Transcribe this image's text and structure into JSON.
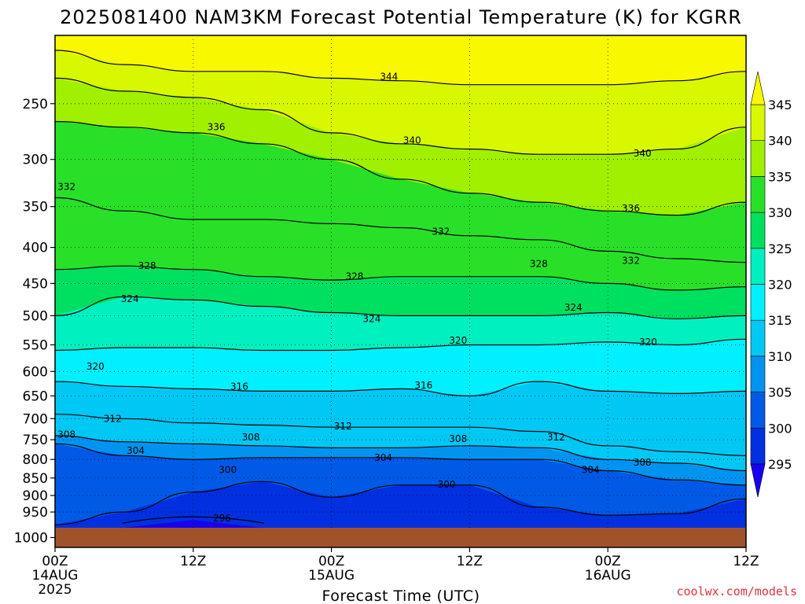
{
  "chart_data": {
    "type": "heatmap",
    "title": "2025081400 NAM3KM Forecast Potential Temperature (K) for KGRR",
    "xlabel": "Forecast Time (UTC)",
    "ylabel": "",
    "credit": "coolwx.com/models",
    "x_unit": "forecast hours from 2025-08-14 00Z",
    "xlim": [
      0,
      60
    ],
    "ylim_hPa": [
      1000,
      200
    ],
    "y_scale": "log-pressure (inverted)",
    "grid": true,
    "x_ticks": [
      {
        "hour": 0,
        "line1": "00Z",
        "line2": "14AUG",
        "line3": "2025"
      },
      {
        "hour": 12,
        "line1": "12Z",
        "line2": "",
        "line3": ""
      },
      {
        "hour": 24,
        "line1": "00Z",
        "line2": "15AUG",
        "line3": ""
      },
      {
        "hour": 36,
        "line1": "12Z",
        "line2": "",
        "line3": ""
      },
      {
        "hour": 48,
        "line1": "00Z",
        "line2": "16AUG",
        "line3": ""
      },
      {
        "hour": 60,
        "line1": "12Z",
        "line2": "",
        "line3": ""
      }
    ],
    "y_ticks": [
      250,
      300,
      350,
      400,
      450,
      500,
      550,
      600,
      650,
      700,
      750,
      800,
      850,
      900,
      950,
      1000
    ],
    "colorbar": {
      "levels": [
        295,
        300,
        305,
        310,
        315,
        320,
        325,
        330,
        335,
        340,
        345
      ],
      "colors": [
        "#1800f0",
        "#0030e0",
        "#005ae6",
        "#0094f0",
        "#00c8f5",
        "#00f0ff",
        "#00f0c0",
        "#00e060",
        "#28e028",
        "#a0f000",
        "#d8f800",
        "#f8f800"
      ],
      "extend": "both"
    },
    "ground_color": "#a0522d",
    "times": [
      0,
      6,
      12,
      18,
      24,
      30,
      36,
      42,
      48,
      54,
      60
    ],
    "isentropes": [
      {
        "theta": 296,
        "p": [
          null,
          null,
          975,
          null,
          null,
          null,
          null,
          null,
          null,
          null,
          null
        ]
      },
      {
        "theta": 300,
        "p": [
          990,
          950,
          890,
          860,
          905,
          870,
          870,
          935,
          960,
          955,
          910
        ]
      },
      {
        "theta": 304,
        "p": [
          760,
          790,
          800,
          795,
          795,
          795,
          800,
          800,
          830,
          855,
          870
        ]
      },
      {
        "theta": 308,
        "p": [
          740,
          755,
          760,
          765,
          770,
          770,
          765,
          770,
          800,
          810,
          830
        ]
      },
      {
        "theta": 312,
        "p": [
          690,
          700,
          710,
          715,
          720,
          720,
          720,
          730,
          765,
          780,
          790
        ]
      },
      {
        "theta": 316,
        "p": [
          620,
          630,
          635,
          640,
          640,
          635,
          650,
          620,
          640,
          645,
          640
        ]
      },
      {
        "theta": 320,
        "p": [
          560,
          555,
          555,
          560,
          560,
          555,
          550,
          550,
          545,
          550,
          540
        ]
      },
      {
        "theta": 324,
        "p": [
          500,
          470,
          475,
          485,
          495,
          500,
          500,
          500,
          495,
          505,
          500
        ]
      },
      {
        "theta": 328,
        "p": [
          430,
          425,
          430,
          440,
          445,
          440,
          440,
          440,
          450,
          460,
          455
        ]
      },
      {
        "theta": 332,
        "p": [
          340,
          355,
          365,
          365,
          370,
          375,
          385,
          390,
          405,
          415,
          420
        ]
      },
      {
        "theta": 336,
        "p": [
          265,
          270,
          275,
          285,
          300,
          320,
          335,
          345,
          355,
          360,
          345
        ]
      },
      {
        "theta": 340,
        "p": [
          230,
          240,
          245,
          255,
          275,
          285,
          290,
          295,
          295,
          290,
          270
        ]
      },
      {
        "theta": 344,
        "p": [
          210,
          220,
          225,
          225,
          230,
          232,
          235,
          235,
          235,
          232,
          225
        ]
      }
    ],
    "contour_labels": [
      {
        "theta": 344,
        "hour": 29.0,
        "p": 229
      },
      {
        "theta": 336,
        "hour": 14.0,
        "p": 270
      },
      {
        "theta": 340,
        "hour": 31.0,
        "p": 282
      },
      {
        "theta": 340,
        "hour": 51.0,
        "p": 294
      },
      {
        "theta": 332,
        "hour": 1.0,
        "p": 328
      },
      {
        "theta": 336,
        "hour": 50.0,
        "p": 352
      },
      {
        "theta": 332,
        "hour": 33.5,
        "p": 380
      },
      {
        "theta": 332,
        "hour": 50.0,
        "p": 418
      },
      {
        "theta": 328,
        "hour": 8.0,
        "p": 425
      },
      {
        "theta": 328,
        "hour": 42.0,
        "p": 422
      },
      {
        "theta": 328,
        "hour": 26.0,
        "p": 440
      },
      {
        "theta": 324,
        "hour": 6.5,
        "p": 473
      },
      {
        "theta": 324,
        "hour": 45.0,
        "p": 487
      },
      {
        "theta": 324,
        "hour": 27.5,
        "p": 505
      },
      {
        "theta": 320,
        "hour": 35.0,
        "p": 542
      },
      {
        "theta": 320,
        "hour": 51.5,
        "p": 545
      },
      {
        "theta": 320,
        "hour": 3.5,
        "p": 590
      },
      {
        "theta": 316,
        "hour": 16.0,
        "p": 630
      },
      {
        "theta": 316,
        "hour": 32.0,
        "p": 628
      },
      {
        "theta": 312,
        "hour": 5.0,
        "p": 700
      },
      {
        "theta": 312,
        "hour": 25.0,
        "p": 718
      },
      {
        "theta": 312,
        "hour": 43.5,
        "p": 744
      },
      {
        "theta": 308,
        "hour": 1.0,
        "p": 737
      },
      {
        "theta": 308,
        "hour": 17.0,
        "p": 744
      },
      {
        "theta": 308,
        "hour": 35.0,
        "p": 748
      },
      {
        "theta": 308,
        "hour": 51.0,
        "p": 808
      },
      {
        "theta": 304,
        "hour": 7.0,
        "p": 777
      },
      {
        "theta": 304,
        "hour": 28.5,
        "p": 795
      },
      {
        "theta": 304,
        "hour": 46.5,
        "p": 828
      },
      {
        "theta": 300,
        "hour": 15.0,
        "p": 828
      },
      {
        "theta": 300,
        "hour": 34.0,
        "p": 868
      },
      {
        "theta": 296,
        "hour": 14.5,
        "p": 970
      }
    ]
  }
}
